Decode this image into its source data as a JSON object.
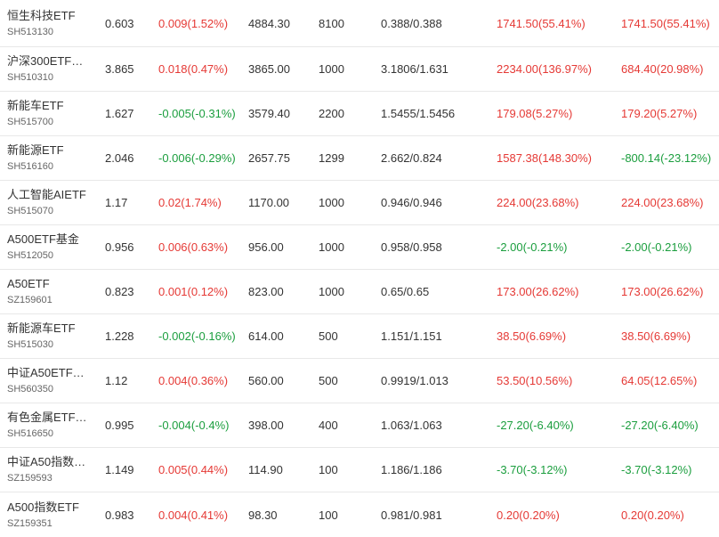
{
  "colors": {
    "up": "#e53935",
    "down": "#1b9e3e",
    "text": "#333333",
    "code": "#666666",
    "divider": "#e8e8e8"
  },
  "rows": [
    {
      "name": "恒生科技ETF",
      "code": "SH513130",
      "price": "0.603",
      "change": "0.009(1.52%)",
      "change_dir": "up",
      "value": "4884.30",
      "qty": "8100",
      "cost": "0.388/0.388",
      "pl1": "1741.50(55.41%)",
      "pl1_dir": "up",
      "pl2": "1741.50(55.41%)",
      "pl2_dir": "up"
    },
    {
      "name": "沪深300ETF…",
      "code": "SH510310",
      "price": "3.865",
      "change": "0.018(0.47%)",
      "change_dir": "up",
      "value": "3865.00",
      "qty": "1000",
      "cost": "3.1806/1.631",
      "pl1": "2234.00(136.97%)",
      "pl1_dir": "up",
      "pl2": "684.40(20.98%)",
      "pl2_dir": "up"
    },
    {
      "name": "新能车ETF",
      "code": "SH515700",
      "price": "1.627",
      "change": "-0.005(-0.31%)",
      "change_dir": "down",
      "value": "3579.40",
      "qty": "2200",
      "cost": "1.5455/1.5456",
      "pl1": "179.08(5.27%)",
      "pl1_dir": "up",
      "pl2": "179.20(5.27%)",
      "pl2_dir": "up"
    },
    {
      "name": "新能源ETF",
      "code": "SH516160",
      "price": "2.046",
      "change": "-0.006(-0.29%)",
      "change_dir": "down",
      "value": "2657.75",
      "qty": "1299",
      "cost": "2.662/0.824",
      "pl1": "1587.38(148.30%)",
      "pl1_dir": "up",
      "pl2": "-800.14(-23.12%)",
      "pl2_dir": "down"
    },
    {
      "name": "人工智能AIETF",
      "code": "SH515070",
      "price": "1.17",
      "change": "0.02(1.74%)",
      "change_dir": "up",
      "value": "1170.00",
      "qty": "1000",
      "cost": "0.946/0.946",
      "pl1": "224.00(23.68%)",
      "pl1_dir": "up",
      "pl2": "224.00(23.68%)",
      "pl2_dir": "up"
    },
    {
      "name": "A500ETF基金",
      "code": "SH512050",
      "price": "0.956",
      "change": "0.006(0.63%)",
      "change_dir": "up",
      "value": "956.00",
      "qty": "1000",
      "cost": "0.958/0.958",
      "pl1": "-2.00(-0.21%)",
      "pl1_dir": "down",
      "pl2": "-2.00(-0.21%)",
      "pl2_dir": "down"
    },
    {
      "name": "A50ETF",
      "code": "SZ159601",
      "price": "0.823",
      "change": "0.001(0.12%)",
      "change_dir": "up",
      "value": "823.00",
      "qty": "1000",
      "cost": "0.65/0.65",
      "pl1": "173.00(26.62%)",
      "pl1_dir": "up",
      "pl2": "173.00(26.62%)",
      "pl2_dir": "up"
    },
    {
      "name": "新能源车ETF",
      "code": "SH515030",
      "price": "1.228",
      "change": "-0.002(-0.16%)",
      "change_dir": "down",
      "value": "614.00",
      "qty": "500",
      "cost": "1.151/1.151",
      "pl1": "38.50(6.69%)",
      "pl1_dir": "up",
      "pl2": "38.50(6.69%)",
      "pl2_dir": "up"
    },
    {
      "name": "中证A50ETF…",
      "code": "SH560350",
      "price": "1.12",
      "change": "0.004(0.36%)",
      "change_dir": "up",
      "value": "560.00",
      "qty": "500",
      "cost": "0.9919/1.013",
      "pl1": "53.50(10.56%)",
      "pl1_dir": "up",
      "pl2": "64.05(12.65%)",
      "pl2_dir": "up"
    },
    {
      "name": "有色金属ETF…",
      "code": "SH516650",
      "price": "0.995",
      "change": "-0.004(-0.4%)",
      "change_dir": "down",
      "value": "398.00",
      "qty": "400",
      "cost": "1.063/1.063",
      "pl1": "-27.20(-6.40%)",
      "pl1_dir": "down",
      "pl2": "-27.20(-6.40%)",
      "pl2_dir": "down"
    },
    {
      "name": "中证A50指数…",
      "code": "SZ159593",
      "price": "1.149",
      "change": "0.005(0.44%)",
      "change_dir": "up",
      "value": "114.90",
      "qty": "100",
      "cost": "1.186/1.186",
      "pl1": "-3.70(-3.12%)",
      "pl1_dir": "down",
      "pl2": "-3.70(-3.12%)",
      "pl2_dir": "down"
    },
    {
      "name": "A500指数ETF",
      "code": "SZ159351",
      "price": "0.983",
      "change": "0.004(0.41%)",
      "change_dir": "up",
      "value": "98.30",
      "qty": "100",
      "cost": "0.981/0.981",
      "pl1": "0.20(0.20%)",
      "pl1_dir": "up",
      "pl2": "0.20(0.20%)",
      "pl2_dir": "up"
    }
  ]
}
